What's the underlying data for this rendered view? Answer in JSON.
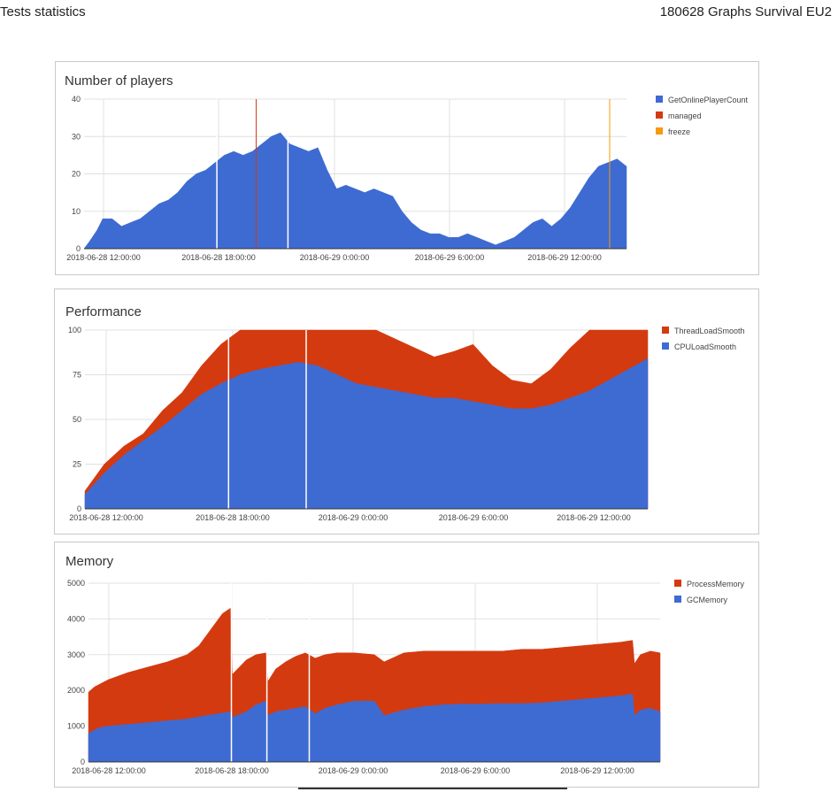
{
  "header": {
    "left_title": "Tests statistics",
    "right_title": "180628 Graphs Survival EU2"
  },
  "chart_data": [
    {
      "type": "area",
      "title": "Number of players",
      "ylim": [
        0,
        40
      ],
      "yticks": [
        0,
        10,
        20,
        30,
        40
      ],
      "x_range_hours": [
        0,
        26
      ],
      "xticks": [
        {
          "label": "2018-06-28 12:00:00"
        },
        {
          "label": "2018-06-28 18:00:00"
        },
        {
          "label": "2018-06-29 0:00:00"
        },
        {
          "label": "2018-06-29 6:00:00"
        },
        {
          "label": "2018-06-29 12:00:00"
        }
      ],
      "legend": [
        {
          "name": "GetOnlinePlayerCount",
          "color": "#3e6bd2"
        },
        {
          "name": "managed",
          "color": "#d43a0f"
        },
        {
          "name": "freeze",
          "color": "#f69a0c"
        }
      ],
      "legend_position": "right",
      "series": [
        {
          "name": "GetOnlinePlayerCount",
          "color": "#3e6bd2",
          "points": [
            [
              0,
              0
            ],
            [
              0.3,
              2
            ],
            [
              0.7,
              5
            ],
            [
              1,
              8
            ],
            [
              1.5,
              8
            ],
            [
              2,
              6
            ],
            [
              2.5,
              7
            ],
            [
              3,
              8
            ],
            [
              3.5,
              10
            ],
            [
              4,
              12
            ],
            [
              4.5,
              13
            ],
            [
              5,
              15
            ],
            [
              5.5,
              18
            ],
            [
              6,
              20
            ],
            [
              6.5,
              21
            ],
            [
              7,
              23
            ],
            [
              7.5,
              25
            ],
            [
              8,
              26
            ],
            [
              8.5,
              25
            ],
            [
              9,
              26
            ],
            [
              9.5,
              28
            ],
            [
              10,
              30
            ],
            [
              10.5,
              31
            ],
            [
              11,
              28
            ],
            [
              11.5,
              27
            ],
            [
              12,
              26
            ],
            [
              12.5,
              27
            ],
            [
              13,
              21
            ],
            [
              13.5,
              16
            ],
            [
              14,
              17
            ],
            [
              14.5,
              16
            ],
            [
              15,
              15
            ],
            [
              15.5,
              16
            ],
            [
              16,
              15
            ],
            [
              16.5,
              14
            ],
            [
              17,
              10
            ],
            [
              17.5,
              7
            ],
            [
              18,
              5
            ],
            [
              18.5,
              4
            ],
            [
              19,
              4
            ],
            [
              19.5,
              3
            ],
            [
              20,
              3
            ],
            [
              20.5,
              4
            ],
            [
              21,
              3
            ],
            [
              21.5,
              2
            ],
            [
              22,
              1
            ],
            [
              22.5,
              2
            ],
            [
              23,
              3
            ],
            [
              23.5,
              5
            ],
            [
              24,
              7
            ],
            [
              24.5,
              8
            ],
            [
              25,
              6
            ],
            [
              25.5,
              8
            ],
            [
              26,
              11
            ],
            [
              26.5,
              15
            ],
            [
              27,
              19
            ],
            [
              27.5,
              22
            ],
            [
              28,
              23
            ],
            [
              28.5,
              24
            ],
            [
              29,
              22
            ]
          ]
        }
      ],
      "events": {
        "managed_hours": [
          9.2
        ],
        "freeze_hours": [
          28.1
        ]
      },
      "gaps_hours": [
        7.1,
        10.9
      ],
      "x_max": 29
    },
    {
      "type": "area",
      "title": "Performance",
      "ylim": [
        0,
        100
      ],
      "yticks": [
        0,
        25,
        50,
        75,
        100
      ],
      "xticks": [
        {
          "label": "2018-06-28 12:00:00"
        },
        {
          "label": "2018-06-28 18:00:00"
        },
        {
          "label": "2018-06-29 0:00:00"
        },
        {
          "label": "2018-06-29 6:00:00"
        },
        {
          "label": "2018-06-29 12:00:00"
        }
      ],
      "legend": [
        {
          "name": "ThreadLoadSmooth",
          "color": "#d43a0f"
        },
        {
          "name": "CPULoadSmooth",
          "color": "#3e6bd2"
        }
      ],
      "legend_position": "right",
      "series": [
        {
          "name": "ThreadLoadSmooth",
          "color": "#d43a0f",
          "points": [
            [
              0,
              10
            ],
            [
              1,
              25
            ],
            [
              2,
              35
            ],
            [
              3,
              42
            ],
            [
              4,
              55
            ],
            [
              5,
              65
            ],
            [
              6,
              80
            ],
            [
              7,
              92
            ],
            [
              8,
              100
            ],
            [
              9,
              100
            ],
            [
              10,
              100
            ],
            [
              11,
              100
            ],
            [
              12,
              100
            ],
            [
              13,
              100
            ],
            [
              14,
              100
            ],
            [
              15,
              100
            ],
            [
              16,
              95
            ],
            [
              17,
              90
            ],
            [
              18,
              85
            ],
            [
              19,
              88
            ],
            [
              20,
              92
            ],
            [
              21,
              80
            ],
            [
              22,
              72
            ],
            [
              23,
              70
            ],
            [
              24,
              78
            ],
            [
              25,
              90
            ],
            [
              26,
              100
            ],
            [
              27,
              100
            ],
            [
              28,
              100
            ],
            [
              29,
              100
            ]
          ]
        },
        {
          "name": "CPULoadSmooth",
          "color": "#3e6bd2",
          "points": [
            [
              0,
              8
            ],
            [
              1,
              20
            ],
            [
              2,
              30
            ],
            [
              3,
              38
            ],
            [
              4,
              46
            ],
            [
              5,
              55
            ],
            [
              6,
              64
            ],
            [
              7,
              70
            ],
            [
              8,
              75
            ],
            [
              9,
              78
            ],
            [
              10,
              80
            ],
            [
              11,
              82
            ],
            [
              12,
              80
            ],
            [
              13,
              75
            ],
            [
              14,
              70
            ],
            [
              15,
              68
            ],
            [
              16,
              66
            ],
            [
              17,
              64
            ],
            [
              18,
              62
            ],
            [
              19,
              62
            ],
            [
              20,
              60
            ],
            [
              21,
              58
            ],
            [
              22,
              56
            ],
            [
              23,
              56
            ],
            [
              24,
              58
            ],
            [
              25,
              62
            ],
            [
              26,
              66
            ],
            [
              27,
              72
            ],
            [
              28,
              78
            ],
            [
              29,
              84
            ]
          ]
        }
      ],
      "gaps_hours": [
        7.4,
        11.4
      ],
      "x_max": 29
    },
    {
      "type": "area",
      "title": "Memory",
      "ylim": [
        0,
        5000
      ],
      "yticks": [
        0,
        1000,
        2000,
        3000,
        4000,
        5000
      ],
      "xticks": [
        {
          "label": "2018-06-28 12:00:00"
        },
        {
          "label": "2018-06-28 18:00:00"
        },
        {
          "label": "2018-06-29 0:00:00"
        },
        {
          "label": "2018-06-29 6:00:00"
        },
        {
          "label": "2018-06-29 12:00:00"
        }
      ],
      "legend": [
        {
          "name": "ProcessMemory",
          "color": "#d43a0f"
        },
        {
          "name": "GCMemory",
          "color": "#3e6bd2"
        }
      ],
      "legend_position": "right",
      "series": [
        {
          "name": "ProcessMemory",
          "color": "#d43a0f",
          "points": [
            [
              0,
              1950
            ],
            [
              0.3,
              2100
            ],
            [
              1,
              2300
            ],
            [
              2,
              2500
            ],
            [
              3,
              2650
            ],
            [
              4,
              2800
            ],
            [
              5,
              3000
            ],
            [
              5.6,
              3250
            ],
            [
              6.2,
              3700
            ],
            [
              6.8,
              4150
            ],
            [
              7.2,
              4300
            ],
            [
              7.3,
              2450
            ],
            [
              8,
              2850
            ],
            [
              8.5,
              3000
            ],
            [
              9,
              3050
            ],
            [
              9.1,
              2250
            ],
            [
              9.5,
              2600
            ],
            [
              10,
              2800
            ],
            [
              10.5,
              2950
            ],
            [
              11,
              3050
            ],
            [
              11.5,
              2900
            ],
            [
              12,
              3000
            ],
            [
              12.6,
              3050
            ],
            [
              13.5,
              3050
            ],
            [
              14.5,
              3000
            ],
            [
              15,
              2800
            ],
            [
              16,
              3050
            ],
            [
              17,
              3100
            ],
            [
              18,
              3100
            ],
            [
              19,
              3100
            ],
            [
              20,
              3100
            ],
            [
              21,
              3100
            ],
            [
              22,
              3150
            ],
            [
              23,
              3150
            ],
            [
              24,
              3200
            ],
            [
              25,
              3250
            ],
            [
              26,
              3300
            ],
            [
              27,
              3350
            ],
            [
              27.6,
              3400
            ],
            [
              27.7,
              2750
            ],
            [
              28,
              3000
            ],
            [
              28.5,
              3100
            ],
            [
              29,
              3050
            ]
          ]
        },
        {
          "name": "GCMemory",
          "color": "#3e6bd2",
          "points": [
            [
              0,
              800
            ],
            [
              0.5,
              950
            ],
            [
              1,
              1000
            ],
            [
              2,
              1050
            ],
            [
              3,
              1100
            ],
            [
              4,
              1150
            ],
            [
              5,
              1200
            ],
            [
              6,
              1300
            ],
            [
              7.2,
              1400
            ],
            [
              7.3,
              1250
            ],
            [
              8,
              1400
            ],
            [
              8.5,
              1600
            ],
            [
              9,
              1700
            ],
            [
              9.1,
              1300
            ],
            [
              9.5,
              1400
            ],
            [
              10,
              1450
            ],
            [
              10.5,
              1500
            ],
            [
              11,
              1550
            ],
            [
              11.5,
              1350
            ],
            [
              12,
              1500
            ],
            [
              12.6,
              1600
            ],
            [
              13.5,
              1700
            ],
            [
              14.5,
              1700
            ],
            [
              15,
              1300
            ],
            [
              16,
              1450
            ],
            [
              17,
              1550
            ],
            [
              18,
              1600
            ],
            [
              19,
              1620
            ],
            [
              20,
              1620
            ],
            [
              21,
              1630
            ],
            [
              22,
              1630
            ],
            [
              23,
              1650
            ],
            [
              24,
              1700
            ],
            [
              25,
              1750
            ],
            [
              26,
              1800
            ],
            [
              27,
              1850
            ],
            [
              27.6,
              1900
            ],
            [
              27.7,
              1300
            ],
            [
              28,
              1450
            ],
            [
              28.5,
              1500
            ],
            [
              29,
              1400
            ]
          ]
        }
      ],
      "gaps_hours": [
        7.25,
        9.05,
        11.2
      ],
      "x_max": 29
    }
  ]
}
